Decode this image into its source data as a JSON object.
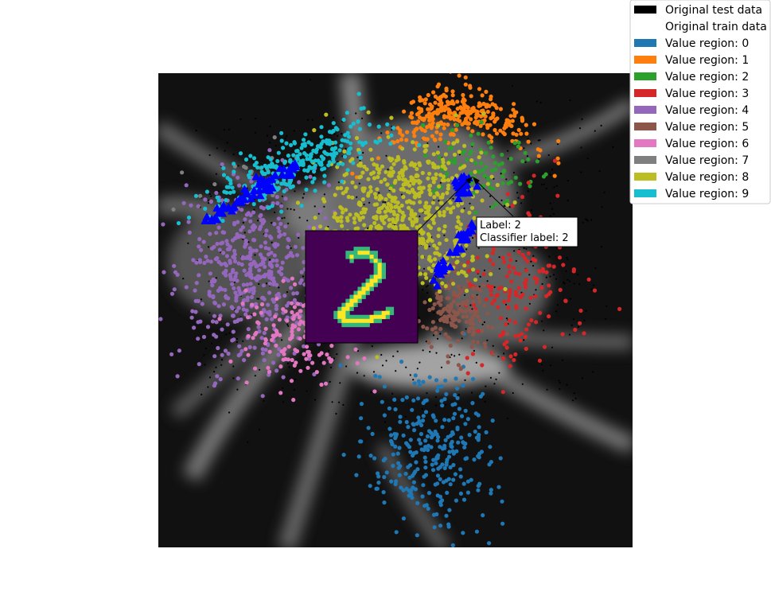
{
  "chart_data": {
    "type": "scatter",
    "title": "",
    "xlabel": "",
    "ylabel": "",
    "xlim": [
      0,
      100
    ],
    "ylim": [
      0,
      100
    ],
    "grid": false,
    "background": "greyscale-value-map",
    "legend": {
      "placement": "top-right",
      "entries": [
        {
          "label": "Original test data",
          "color": "#000000"
        },
        {
          "label": "Original train data",
          "color": "#ffffff"
        },
        {
          "label": "Value region: 0",
          "color": "#1f77b4"
        },
        {
          "label": "Value region: 1",
          "color": "#ff7f0e"
        },
        {
          "label": "Value region: 2",
          "color": "#2ca02c"
        },
        {
          "label": "Value region: 3",
          "color": "#d62728"
        },
        {
          "label": "Value region: 4",
          "color": "#9467bd"
        },
        {
          "label": "Value region: 5",
          "color": "#8c564b"
        },
        {
          "label": "Value region: 6",
          "color": "#e377c2"
        },
        {
          "label": "Value region: 7",
          "color": "#7f7f7f"
        },
        {
          "label": "Value region: 8",
          "color": "#bcbd22"
        },
        {
          "label": "Value region: 9",
          "color": "#17becf"
        }
      ]
    },
    "clusters": [
      {
        "region": 0,
        "color": "#1f77b4",
        "cx": 58,
        "cy": 20,
        "sx": 7,
        "sy": 8,
        "n": 300
      },
      {
        "region": 1,
        "color": "#ff7f0e",
        "cx": 63,
        "cy": 92,
        "sx": 8,
        "sy": 2.5,
        "n": 300
      },
      {
        "region": 2,
        "color": "#2ca02c",
        "cx": 67,
        "cy": 80,
        "sx": 6,
        "sy": 4,
        "n": 90
      },
      {
        "region": 3,
        "color": "#d62728",
        "cx": 76,
        "cy": 55,
        "sx": 6,
        "sy": 8,
        "n": 180
      },
      {
        "region": 4,
        "color": "#9467bd",
        "cx": 20,
        "cy": 58,
        "sx": 8,
        "sy": 9,
        "n": 500
      },
      {
        "region": 5,
        "color": "#8c564b",
        "cx": 63,
        "cy": 50,
        "sx": 3.5,
        "sy": 5,
        "n": 160
      },
      {
        "region": 6,
        "color": "#e377c2",
        "cx": 30,
        "cy": 45,
        "sx": 7,
        "sy": 5,
        "n": 150
      },
      {
        "region": 7,
        "color": "#7f7f7f",
        "cx": 20,
        "cy": 78,
        "sx": 6,
        "sy": 3,
        "n": 20
      },
      {
        "region": 8,
        "color": "#bcbd22",
        "cx": 52,
        "cy": 70,
        "sx": 8,
        "sy": 8,
        "n": 650
      },
      {
        "region": 9,
        "color": "#17becf",
        "cx": 28,
        "cy": 80,
        "sx": 9,
        "sy": 3,
        "n": 300
      }
    ],
    "test_points": {
      "color": "#000000",
      "n": 600
    },
    "highlighted": {
      "marker": "triangle",
      "color": "#0000ff"
    },
    "annotation": {
      "line1": "Label: 2",
      "line2": "Classifier label: 2",
      "x": 66,
      "y": 78
    },
    "inset_digit": "2"
  }
}
